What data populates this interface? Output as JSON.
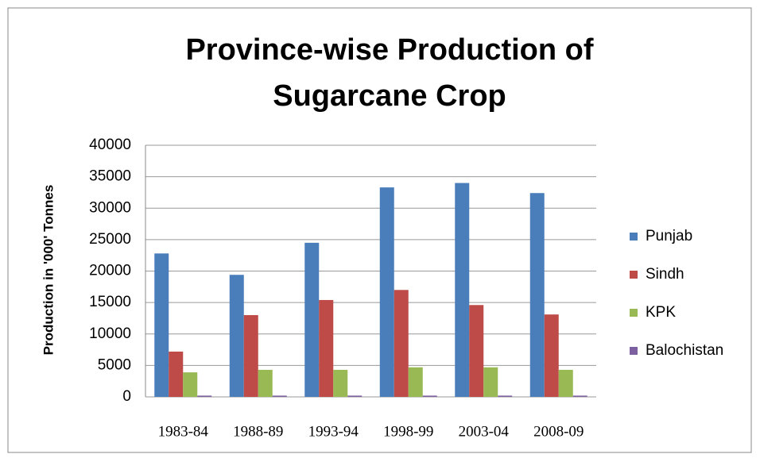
{
  "chart_data": {
    "type": "bar",
    "title": [
      "Province-wise Production of",
      "Sugarcane Crop"
    ],
    "y_label": "Production in '000' Tonnes",
    "categories": [
      "1983-84",
      "1988-89",
      "1993-94",
      "1998-99",
      "2003-04",
      "2008-09"
    ],
    "series": [
      {
        "name": "Punjab",
        "color": "#4a7ebb",
        "values": [
          22800,
          19400,
          24500,
          33300,
          34000,
          32400
        ]
      },
      {
        "name": "Sindh",
        "color": "#be4b48",
        "values": [
          7200,
          13000,
          15400,
          17000,
          14600,
          13100
        ]
      },
      {
        "name": "KPK",
        "color": "#98b954",
        "values": [
          3900,
          4300,
          4300,
          4700,
          4700,
          4300
        ]
      },
      {
        "name": "Balochistan",
        "color": "#7d60a0",
        "values": [
          200,
          200,
          200,
          200,
          200,
          200
        ]
      }
    ],
    "ylim": [
      0,
      40000
    ],
    "yticks": [
      0,
      5000,
      10000,
      15000,
      20000,
      25000,
      30000,
      35000,
      40000
    ],
    "grid": true,
    "legend": "right"
  }
}
